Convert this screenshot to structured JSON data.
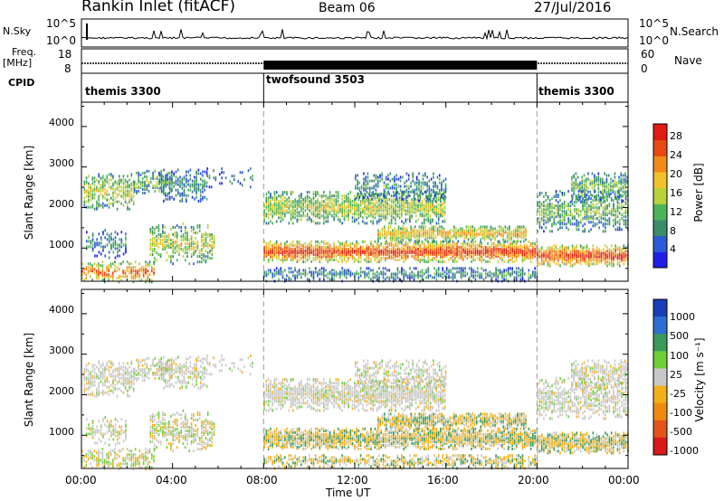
{
  "header": {
    "station": "Rankin Inlet (fitACF)",
    "beam": "Beam 06",
    "date": "27/Jul/2016"
  },
  "panel_labels": {
    "nsky": "N.Sky",
    "freq": "Freq.",
    "freq_unit": "[MHz]",
    "cpid": "CPID",
    "nsearch": "N.Search",
    "nave": "Nave"
  },
  "chart_data": [
    {
      "type": "line",
      "name": "noise",
      "y_left_ticks": [
        "10^5",
        "10^0"
      ],
      "y_right_ticks": [
        "10^5",
        "10^0"
      ],
      "x": [
        "00:00",
        "04:00",
        "08:00",
        "12:00",
        "16:00",
        "20:00",
        "00:00"
      ]
    },
    {
      "type": "line",
      "name": "frequency-nave",
      "y_left_ticks": [
        "18",
        "8"
      ],
      "y_right_ticks": [
        "60",
        "0"
      ],
      "ylim_left": [
        8,
        18
      ],
      "ylim_right": [
        0,
        60
      ]
    },
    {
      "type": "timeline",
      "name": "cpid",
      "segments": [
        {
          "label": "themis 3300",
          "start_hr": 0,
          "end_hr": 8
        },
        {
          "label": "twofsound 3503",
          "start_hr": 8,
          "end_hr": 20
        },
        {
          "label": "themis 3300",
          "start_hr": 20,
          "end_hr": 24
        }
      ]
    },
    {
      "type": "heatmap",
      "name": "power",
      "ylabel": "Slant Range [km]",
      "yticks": [
        1000,
        2000,
        3000,
        4000
      ],
      "ylim": [
        180,
        4600
      ],
      "xlim": [
        0,
        24
      ],
      "colorbar_label": "Power [dB]",
      "colorbar_ticks": [
        4,
        8,
        12,
        16,
        20,
        24,
        28
      ],
      "colors": [
        "#1f1fe6",
        "#2b5bd6",
        "#3c8c6a",
        "#4cb35a",
        "#b7d23a",
        "#f2c22a",
        "#f28a1a",
        "#e84a14",
        "#e11a12"
      ]
    },
    {
      "type": "heatmap",
      "name": "velocity",
      "ylabel": "Slant Range [km]",
      "yticks": [
        1000,
        2000,
        3000,
        4000
      ],
      "ylim": [
        180,
        4600
      ],
      "xlim": [
        0,
        24
      ],
      "xlabel": "Time UT",
      "xticklabels": [
        "00:00",
        "04:00",
        "08:00",
        "12:00",
        "16:00",
        "20:00",
        "00:00"
      ],
      "colorbar_label": "Velocity [m s⁻¹]",
      "colorbar_ticks": [
        "1000",
        "500",
        "100",
        "25",
        "-25",
        "-100",
        "-500",
        "-1000"
      ],
      "colors": [
        "#1a3fb5",
        "#2c6fd0",
        "#3a9a5a",
        "#6fcf3a",
        "#c8c8c8",
        "#f2b11a",
        "#ee8a10",
        "#e2541a",
        "#d81a1a"
      ]
    }
  ]
}
